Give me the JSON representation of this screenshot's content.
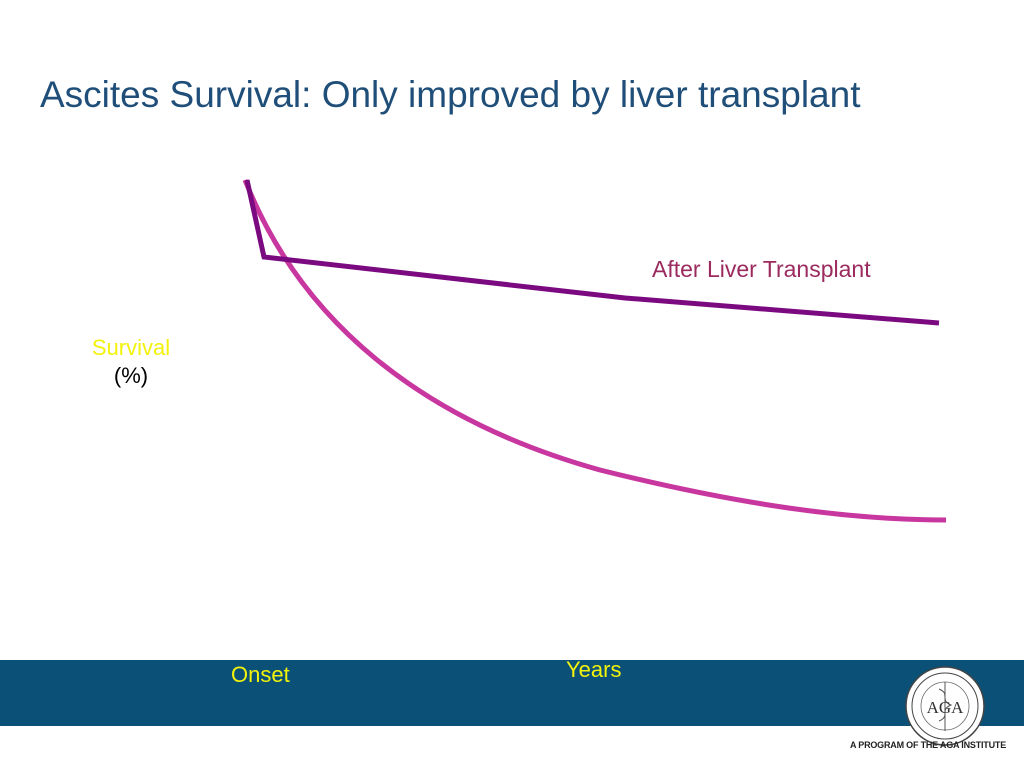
{
  "slide": {
    "title": "Ascites Survival: Only improved by liver transplant",
    "tagline": "A PROGRAM OF THE AGA INSTITUTE"
  },
  "colors": {
    "title": "#1f4e79",
    "footer_band": "#0b5177",
    "transplant_line": "#7b0a81",
    "natural_curve": "#c8379f",
    "survival_label": "#f2f20a",
    "series_label": "#9b2a5e",
    "axis_text": "#f2f20a"
  },
  "logo": {
    "icon": "aga-seal-icon",
    "letters": "AGA"
  },
  "chart_data": {
    "type": "line",
    "title": "",
    "ylabel_word": "Survival",
    "ylabel_unit": "(%)",
    "xlabel": "Years",
    "xtick_start": "Onset",
    "series": [
      {
        "name": "After Liver Transplant",
        "color": "#7b0a81"
      },
      {
        "name": "",
        "color": "#c8379f"
      }
    ]
  }
}
